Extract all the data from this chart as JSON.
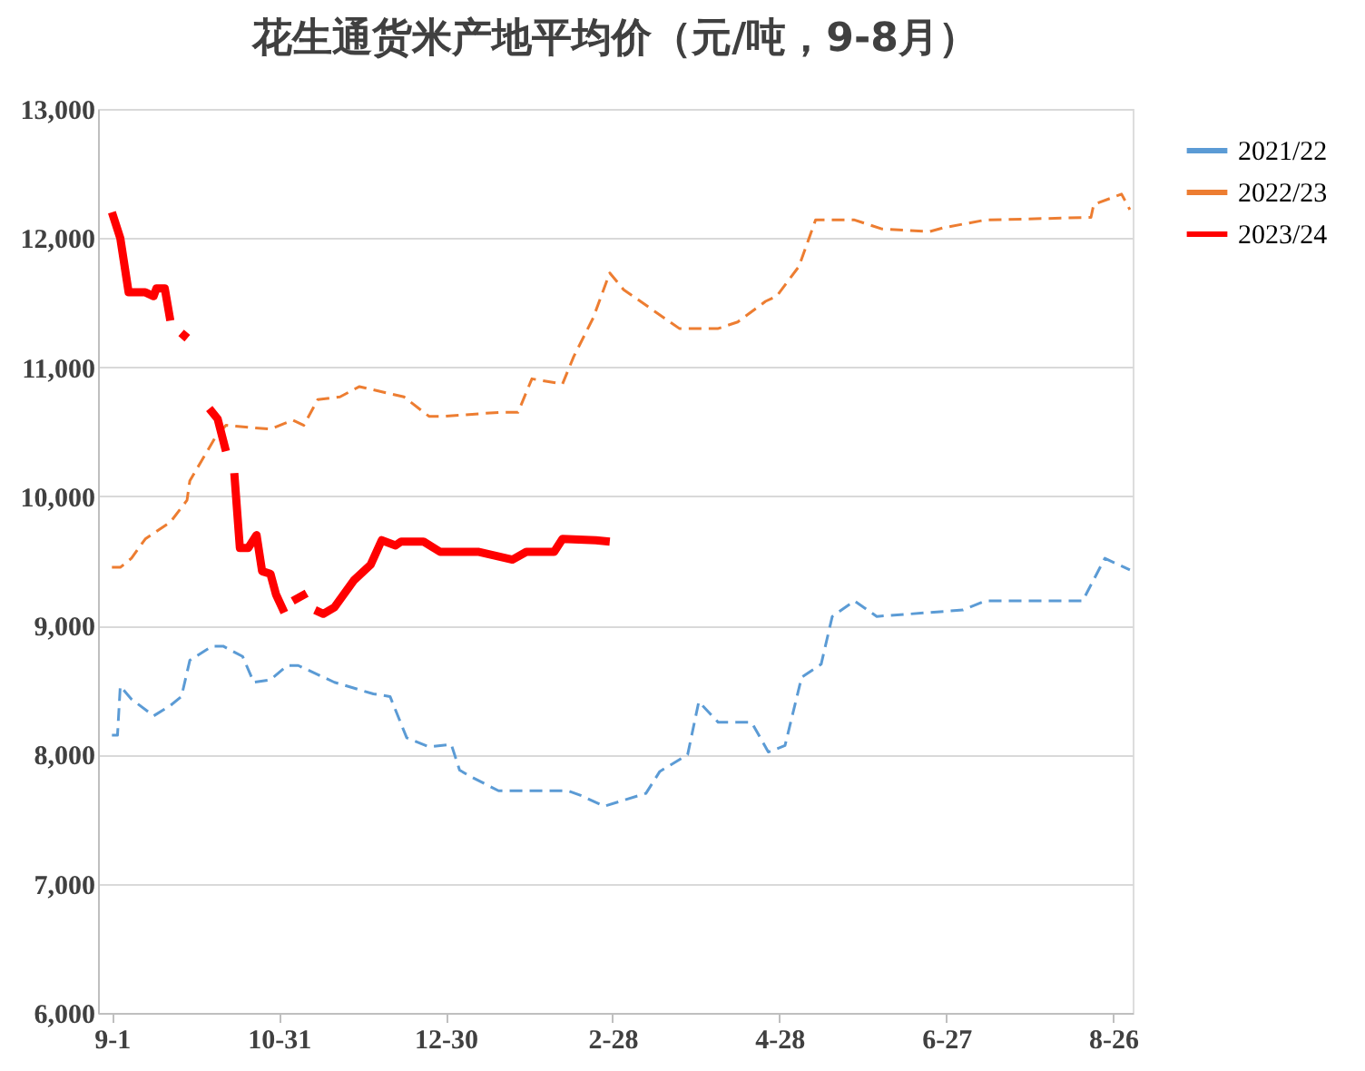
{
  "chart_data": {
    "type": "line",
    "title": "花生通货米产地平均价（元/吨，9-8月）",
    "xlim": [
      "2023-08-27",
      "2024-09-02"
    ],
    "xticks": [
      {
        "value": "2023-09-01",
        "label": "9-1"
      },
      {
        "value": "2023-10-31",
        "label": "10-31"
      },
      {
        "value": "2023-12-30",
        "label": "12-30"
      },
      {
        "value": "2024-02-28",
        "label": "2-28"
      },
      {
        "value": "2024-04-28",
        "label": "4-28"
      },
      {
        "value": "2024-06-27",
        "label": "6-27"
      },
      {
        "value": "2024-08-26",
        "label": "8-26"
      }
    ],
    "ylim": [
      6000,
      13000
    ],
    "yticks": [
      {
        "value": 6000,
        "label": "6,000"
      },
      {
        "value": 7000,
        "label": "7,000"
      },
      {
        "value": 8000,
        "label": "8,000"
      },
      {
        "value": 9000,
        "label": "9,000"
      },
      {
        "value": 10000,
        "label": "10,000"
      },
      {
        "value": 11000,
        "label": "11,000"
      },
      {
        "value": 12000,
        "label": "12,000"
      },
      {
        "value": 13000,
        "label": "13,000"
      }
    ],
    "grid": "y",
    "legend": "right",
    "series": [
      {
        "name": "2021/22",
        "color": "#5b9bd5",
        "line_style": "dashed",
        "x": [
          "2023-09-01",
          "2023-09-03",
          "2023-09-04",
          "2023-09-08",
          "2023-09-16",
          "2023-09-22",
          "2023-09-26",
          "2023-09-29",
          "2023-10-07",
          "2023-10-11",
          "2023-10-18",
          "2023-10-22",
          "2023-10-28",
          "2023-11-03",
          "2023-11-07",
          "2023-11-20",
          "2023-12-04",
          "2023-12-10",
          "2023-12-16",
          "2023-12-24",
          "2024-01-01",
          "2024-01-04",
          "2024-01-08",
          "2024-01-18",
          "2024-02-12",
          "2024-02-17",
          "2024-02-25",
          "2024-03-11",
          "2024-03-16",
          "2024-03-26",
          "2024-03-30",
          "2024-04-06",
          "2024-04-18",
          "2024-04-24",
          "2024-04-30",
          "2024-05-06",
          "2024-05-13",
          "2024-05-17",
          "2024-05-25",
          "2024-06-02",
          "2024-07-03",
          "2024-07-11",
          "2024-08-15",
          "2024-08-23",
          "2024-09-01"
        ],
        "values": [
          8150,
          8150,
          8530,
          8430,
          8300,
          8380,
          8450,
          8730,
          8840,
          8840,
          8760,
          8560,
          8580,
          8690,
          8690,
          8560,
          8470,
          8450,
          8130,
          8060,
          8080,
          7880,
          7830,
          7720,
          7720,
          7680,
          7600,
          7700,
          7870,
          8000,
          8410,
          8250,
          8250,
          8020,
          8070,
          8600,
          8700,
          9070,
          9190,
          9070,
          9120,
          9190,
          9190,
          9520,
          9430
        ]
      },
      {
        "name": "2022/23",
        "color": "#ed7d31",
        "line_style": "dashed",
        "x": [
          "2023-09-01",
          "2023-09-04",
          "2023-09-08",
          "2023-09-13",
          "2023-09-22",
          "2023-09-28",
          "2023-09-29",
          "2023-10-08",
          "2023-10-12",
          "2023-10-28",
          "2023-11-05",
          "2023-11-09",
          "2023-11-14",
          "2023-11-22",
          "2023-11-29",
          "2023-12-15",
          "2023-12-24",
          "2023-12-29",
          "2024-01-18",
          "2024-01-25",
          "2024-01-30",
          "2024-02-10",
          "2024-02-14",
          "2024-02-21",
          "2024-02-27",
          "2024-03-03",
          "2024-03-13",
          "2024-03-23",
          "2024-04-06",
          "2024-04-13",
          "2024-04-23",
          "2024-04-27",
          "2024-05-05",
          "2024-05-11",
          "2024-05-25",
          "2024-06-04",
          "2024-06-21",
          "2024-06-26",
          "2024-07-11",
          "2024-08-18",
          "2024-08-19",
          "2024-08-29",
          "2024-09-01"
        ],
        "values": [
          9450,
          9450,
          9520,
          9670,
          9800,
          9970,
          10120,
          10450,
          10550,
          10520,
          10590,
          10550,
          10750,
          10770,
          10850,
          10770,
          10620,
          10620,
          10650,
          10650,
          10910,
          10870,
          11080,
          11380,
          11730,
          11600,
          11450,
          11300,
          11300,
          11350,
          11510,
          11550,
          11780,
          12140,
          12140,
          12070,
          12050,
          12080,
          12140,
          12160,
          12260,
          12340,
          12220
        ]
      },
      {
        "name": "2023/24",
        "color": "#ff0000",
        "line_style": "solid",
        "x": [
          "2023-09-01",
          "2023-09-04",
          "2023-09-07",
          "2023-09-13",
          "2023-09-16",
          "2023-09-17",
          "2023-09-20",
          "2023-09-22",
          "2023-09-24",
          "2023-09-26",
          "2023-09-28",
          "2023-10-01",
          "2023-10-06",
          "2023-10-09",
          "2023-10-12",
          "2023-10-14",
          "2023-10-15",
          "2023-10-17",
          "2023-10-20",
          "2023-10-23",
          "2023-10-25",
          "2023-10-28",
          "2023-10-30",
          "2023-11-02",
          "2023-11-03",
          "2023-11-05",
          "2023-11-10",
          "2023-11-12",
          "2023-11-13",
          "2023-11-16",
          "2023-11-20",
          "2023-11-27",
          "2023-12-03",
          "2023-12-07",
          "2023-12-12",
          "2023-12-14",
          "2023-12-22",
          "2023-12-28",
          "2024-01-11",
          "2024-01-23",
          "2024-01-28",
          "2024-02-07",
          "2024-02-10",
          "2024-02-22",
          "2024-02-27"
        ],
        "values": [
          12200,
          12000,
          11580,
          11580,
          11550,
          11610,
          11610,
          11360,
          null,
          11220,
          11270,
          null,
          10680,
          10600,
          10350,
          null,
          10180,
          9600,
          9600,
          9700,
          9420,
          9400,
          9240,
          9100,
          null,
          9190,
          9250,
          null,
          9120,
          9090,
          9140,
          9350,
          9470,
          9660,
          9620,
          9650,
          9650,
          9570,
          9570,
          9510,
          9570,
          9570,
          9670,
          9660,
          9650
        ]
      }
    ]
  }
}
